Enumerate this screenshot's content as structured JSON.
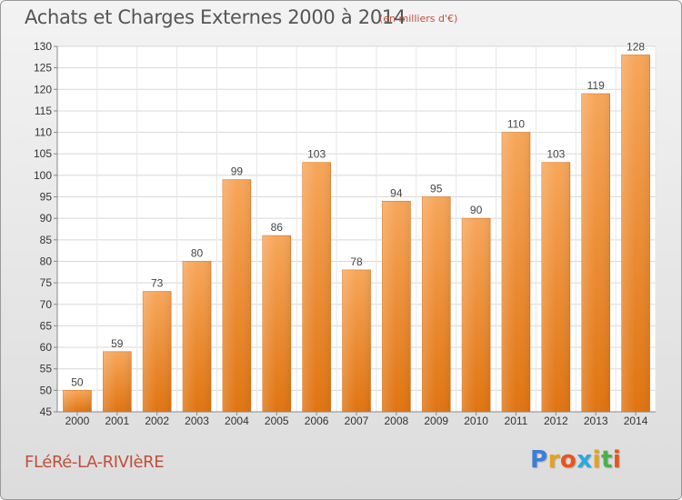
{
  "title": "Achats et Charges Externes 2000 à 2014",
  "unit": "(en milliers d'€)",
  "commune": "FLéRé-LA-RIVIèRE",
  "logo": {
    "letters": [
      "P",
      "r",
      "o",
      "x",
      "i",
      "t",
      "i"
    ],
    "colors": [
      "#3a7fd5",
      "#e8a21a",
      "#e8541a",
      "#2aa8e0",
      "#e8a21a",
      "#4caf50",
      "#e8541a"
    ]
  },
  "colors": {
    "bar": "#f28a2e",
    "bar_top": "#f7a65a",
    "bar_bottom": "#e07410",
    "accent": "#c0503a"
  },
  "chart_data": {
    "type": "bar",
    "categories": [
      "2000",
      "2001",
      "2002",
      "2003",
      "2004",
      "2005",
      "2006",
      "2007",
      "2008",
      "2009",
      "2010",
      "2011",
      "2012",
      "2013",
      "2014"
    ],
    "values": [
      50,
      59,
      73,
      80,
      99,
      86,
      103,
      78,
      94,
      95,
      90,
      110,
      103,
      119,
      128
    ],
    "ylim": [
      45,
      130
    ],
    "yticks": [
      45,
      50,
      55,
      60,
      65,
      70,
      75,
      80,
      85,
      90,
      95,
      100,
      105,
      110,
      115,
      120,
      125,
      130
    ],
    "grid": true
  }
}
